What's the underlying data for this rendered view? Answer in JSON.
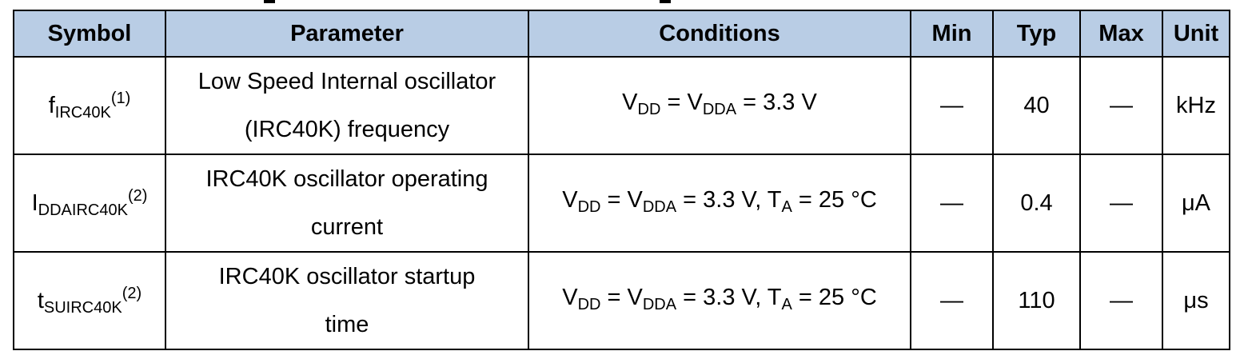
{
  "table": {
    "headers": {
      "symbol": "Symbol",
      "parameter": "Parameter",
      "conditions": "Conditions",
      "min": "Min",
      "typ": "Typ",
      "max": "Max",
      "unit": "Unit"
    },
    "rows": [
      {
        "symbol": {
          "main": "f",
          "sub": "IRC40K",
          "note": "(1)"
        },
        "parameter": [
          "Low Speed Internal oscillator",
          "(IRC40K) frequency"
        ],
        "conditions": {
          "vdd": "V",
          "vdd_sub": "DD",
          "eq1": " = V",
          "vdda_sub": "DDA",
          "rest": " = 3.3 V",
          "ta": "",
          "ta_sub": "",
          "ta_rest": ""
        },
        "min": "—",
        "typ": "40",
        "max": "—",
        "unit": "kHz"
      },
      {
        "symbol": {
          "main": "I",
          "sub": "DDAIRC40K",
          "note": "(2)"
        },
        "parameter": [
          "IRC40K oscillator operating",
          "current"
        ],
        "conditions": {
          "vdd": "V",
          "vdd_sub": "DD",
          "eq1": " = V",
          "vdda_sub": "DDA",
          "rest": " = 3.3 V, ",
          "ta": "T",
          "ta_sub": "A",
          "ta_rest": " = 25 °C"
        },
        "min": "—",
        "typ": "0.4",
        "max": "—",
        "unit": "μA"
      },
      {
        "symbol": {
          "main": "t",
          "sub": "SUIRC40K",
          "note": "(2)"
        },
        "parameter": [
          "IRC40K oscillator startup",
          "time"
        ],
        "conditions": {
          "vdd": "V",
          "vdd_sub": "DD",
          "eq1": " = V",
          "vdda_sub": "DDA",
          "rest": " = 3.3 V, ",
          "ta": "T",
          "ta_sub": "A",
          "ta_rest": " = 25 °C"
        },
        "min": "—",
        "typ": "110",
        "max": "—",
        "unit": "μs"
      }
    ]
  }
}
